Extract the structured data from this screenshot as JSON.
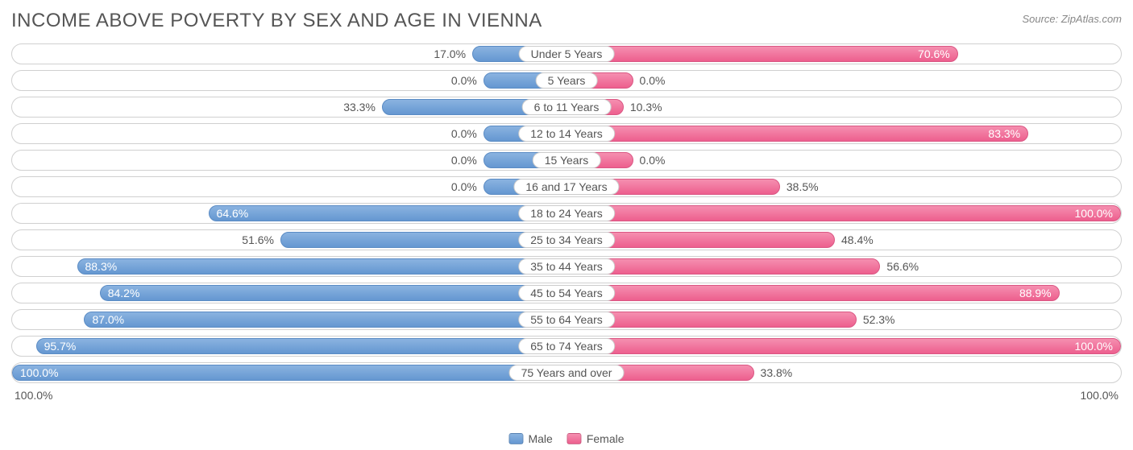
{
  "title": "INCOME ABOVE POVERTY BY SEX AND AGE IN VIENNA",
  "source": "Source: ZipAtlas.com",
  "chart": {
    "type": "diverging-horizontal-bar",
    "background_color": "#ffffff",
    "row_border_color": "#d0d0d0",
    "text_color": "#555555",
    "title_fontsize": 24,
    "label_fontsize": 14,
    "male_color": "#6597d1",
    "male_color_light": "#8ab3e0",
    "female_color": "#ed5f8e",
    "female_color_light": "#f58fb0",
    "axis_left": "100.0%",
    "axis_right": "100.0%",
    "legend": {
      "male": "Male",
      "female": "Female"
    },
    "categories": [
      {
        "label": "Under 5 Years",
        "male": 17.0,
        "female": 70.6
      },
      {
        "label": "5 Years",
        "male": 0.0,
        "female": 0.0,
        "male_stub": 15,
        "female_stub": 12
      },
      {
        "label": "6 to 11 Years",
        "male": 33.3,
        "female": 10.3,
        "female_stub": 18
      },
      {
        "label": "12 to 14 Years",
        "male": 0.0,
        "female": 83.3,
        "male_stub": 15
      },
      {
        "label": "15 Years",
        "male": 0.0,
        "female": 0.0,
        "male_stub": 15,
        "female_stub": 12
      },
      {
        "label": "16 and 17 Years",
        "male": 0.0,
        "female": 38.5,
        "male_stub": 15
      },
      {
        "label": "18 to 24 Years",
        "male": 64.6,
        "female": 100.0
      },
      {
        "label": "25 to 34 Years",
        "male": 51.6,
        "female": 48.4
      },
      {
        "label": "35 to 44 Years",
        "male": 88.3,
        "female": 56.6
      },
      {
        "label": "45 to 54 Years",
        "male": 84.2,
        "female": 88.9
      },
      {
        "label": "55 to 64 Years",
        "male": 87.0,
        "female": 52.3
      },
      {
        "label": "65 to 74 Years",
        "male": 95.7,
        "female": 100.0
      },
      {
        "label": "75 Years and over",
        "male": 100.0,
        "female": 33.8
      }
    ]
  }
}
